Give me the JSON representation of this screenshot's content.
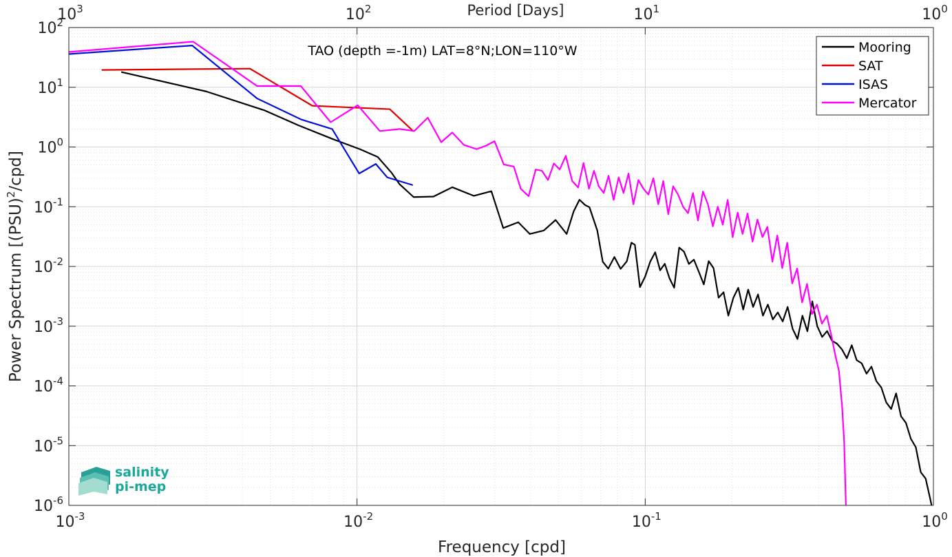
{
  "colors": {
    "Mooring": "#000000",
    "SAT": "#e00000",
    "ISAS": "#0010d8",
    "Mercator": "#ff00ff",
    "grid": "#d6d6d6",
    "axis": "#262626",
    "logo": "#1aa89a"
  },
  "logo": {
    "line1": "salinity",
    "line2": "pi-mep",
    "icon": "wave-layers-icon"
  },
  "chart_data": {
    "type": "line",
    "title": "TAO (depth =-1m) LAT=8°N;LON=110°W",
    "xlabel": "Frequency [cpd]",
    "ylabel": "Power Spectrum [(PSU)²/cpd]",
    "ylabel_parts": {
      "main": "Power Spectrum [(PSU)",
      "sup": "2",
      "tail": "/cpd]"
    },
    "top_xlabel": "Period [Days]",
    "xscale": "log",
    "yscale": "log",
    "xlim": [
      0.001,
      1
    ],
    "ylim": [
      1e-06,
      100
    ],
    "x_ticks": [
      {
        "value": 0.001,
        "base": "10",
        "exp": "-3"
      },
      {
        "value": 0.01,
        "base": "10",
        "exp": "-2"
      },
      {
        "value": 0.1,
        "base": "10",
        "exp": "-1"
      },
      {
        "value": 1,
        "base": "10",
        "exp": "0"
      }
    ],
    "top_ticks": [
      {
        "value": 1000,
        "base": "10",
        "exp": "3"
      },
      {
        "value": 100,
        "base": "10",
        "exp": "2"
      },
      {
        "value": 10,
        "base": "10",
        "exp": "1"
      },
      {
        "value": 1,
        "base": "10",
        "exp": "0"
      }
    ],
    "y_ticks": [
      {
        "value": 1e-06,
        "base": "10",
        "exp": "-6"
      },
      {
        "value": 1e-05,
        "base": "10",
        "exp": "-5"
      },
      {
        "value": 0.0001,
        "base": "10",
        "exp": "-4"
      },
      {
        "value": 0.001,
        "base": "10",
        "exp": "-3"
      },
      {
        "value": 0.01,
        "base": "10",
        "exp": "-2"
      },
      {
        "value": 0.1,
        "base": "10",
        "exp": "-1"
      },
      {
        "value": 1,
        "base": "10",
        "exp": "0"
      },
      {
        "value": 10,
        "base": "10",
        "exp": "1"
      },
      {
        "value": 100,
        "base": "10",
        "exp": "2"
      }
    ],
    "grid": true,
    "minor_grid": true,
    "legend_position": "top-right",
    "series": [
      {
        "name": "Mooring",
        "x": [
          0.00152,
          0.003,
          0.00478,
          0.00627,
          0.00826,
          0.01023,
          0.0118,
          0.01318,
          0.01403,
          0.01572,
          0.01842,
          0.02141,
          0.02544,
          0.02925,
          0.03216,
          0.03626,
          0.03977,
          0.04446,
          0.04887,
          0.05338,
          0.05642,
          0.05913,
          0.06181,
          0.06404,
          0.06818,
          0.07123,
          0.07443,
          0.07817,
          0.08215,
          0.08632,
          0.08956,
          0.09208,
          0.09586,
          0.1,
          0.10406,
          0.1083,
          0.11267,
          0.11689,
          0.12145,
          0.12604,
          0.13118,
          0.13631,
          0.14175,
          0.14751,
          0.15338,
          0.15968,
          0.16606,
          0.17258,
          0.17975,
          0.18697,
          0.19428,
          0.20229,
          0.21033,
          0.21879,
          0.22761,
          0.23677,
          0.24627,
          0.25613,
          0.26637,
          0.27722,
          0.2884,
          0.29995,
          0.312,
          0.32453,
          0.33755,
          0.35117,
          0.36533,
          0.38001,
          0.39528,
          0.41115,
          0.42765,
          0.44482,
          0.46268,
          0.48131,
          0.50063,
          0.52075,
          0.54162,
          0.56339,
          0.58606,
          0.60954,
          0.63402,
          0.6595,
          0.68598,
          0.71354,
          0.7422,
          0.772,
          0.80304,
          0.83528,
          0.86884,
          0.90378,
          0.94003,
          0.97779,
          0.995
        ],
        "y": [
          18.0,
          8.5,
          4.1,
          2.3,
          1.35,
          0.92,
          0.68,
          0.37,
          0.24,
          0.145,
          0.148,
          0.212,
          0.152,
          0.182,
          0.044,
          0.055,
          0.035,
          0.04,
          0.06,
          0.035,
          0.083,
          0.131,
          0.107,
          0.098,
          0.04,
          0.012,
          0.0092,
          0.0144,
          0.0091,
          0.0122,
          0.025,
          0.023,
          0.0045,
          0.0068,
          0.012,
          0.0173,
          0.0086,
          0.0111,
          0.0063,
          0.0044,
          0.0207,
          0.0177,
          0.011,
          0.013,
          0.0082,
          0.005,
          0.0123,
          0.0094,
          0.003,
          0.0037,
          0.0015,
          0.003,
          0.0044,
          0.0019,
          0.0041,
          0.0021,
          0.0034,
          0.0015,
          0.0023,
          0.0013,
          0.0017,
          0.0012,
          0.0021,
          0.00091,
          0.00061,
          0.0015,
          0.00082,
          0.0026,
          0.001,
          0.00066,
          0.00083,
          0.00057,
          0.00051,
          0.00041,
          0.00029,
          0.00048,
          0.00027,
          0.00024,
          0.00016,
          0.00021,
          0.00012,
          9.4e-05,
          5.3e-05,
          4.1e-05,
          7.5e-05,
          3.1e-05,
          2.4e-05,
          1.3e-05,
          9.4e-06,
          3.6e-06,
          2.8e-06,
          1.2e-06,
          8e-07
        ]
      },
      {
        "name": "SAT",
        "x": [
          0.0013,
          0.00425,
          0.007,
          0.01299,
          0.01557
        ],
        "y": [
          19.5,
          20.5,
          4.9,
          4.3,
          1.9
        ]
      },
      {
        "name": "ISAS",
        "x": [
          0.001,
          0.00268,
          0.0045,
          0.00639,
          0.0082,
          0.01017,
          0.01162,
          0.01273,
          0.01562
        ],
        "y": [
          36.0,
          50.0,
          6.5,
          2.9,
          2.0,
          0.36,
          0.52,
          0.31,
          0.23
        ]
      },
      {
        "name": "Mercator",
        "x": [
          0.001,
          0.0027,
          0.0045,
          0.00638,
          0.0081,
          0.01006,
          0.012,
          0.0141,
          0.0158,
          0.0176,
          0.0196,
          0.0214,
          0.0235,
          0.026,
          0.028,
          0.03,
          0.0323,
          0.035,
          0.037,
          0.0394,
          0.0417,
          0.0438,
          0.046,
          0.0482,
          0.0505,
          0.053,
          0.0558,
          0.0585,
          0.0611,
          0.0638,
          0.0664,
          0.069,
          0.0718,
          0.0746,
          0.0777,
          0.0809,
          0.0841,
          0.0875,
          0.091,
          0.0947,
          0.0986,
          0.1026,
          0.1067,
          0.111,
          0.1155,
          0.1202,
          0.125,
          0.13,
          0.1353,
          0.1408,
          0.1465,
          0.1524,
          0.1586,
          0.165,
          0.1717,
          0.1786,
          0.1858,
          0.1933,
          0.2011,
          0.2093,
          0.2177,
          0.2265,
          0.2357,
          0.2452,
          0.2551,
          0.2654,
          0.2762,
          0.2873,
          0.2989,
          0.311,
          0.3236,
          0.3366,
          0.3502,
          0.3644,
          0.3791,
          0.3944,
          0.4103,
          0.4269,
          0.4441,
          0.457,
          0.47,
          0.482,
          0.49,
          0.497
        ],
        "y": [
          39.0,
          58.0,
          10.5,
          10.5,
          2.6,
          5.0,
          1.85,
          2.0,
          1.85,
          3.1,
          1.2,
          1.75,
          1.08,
          0.92,
          1.05,
          1.25,
          0.51,
          0.47,
          0.2,
          0.15,
          0.42,
          0.4,
          0.28,
          0.53,
          0.42,
          0.71,
          0.27,
          0.21,
          0.54,
          0.2,
          0.4,
          0.22,
          0.17,
          0.33,
          0.13,
          0.31,
          0.17,
          0.36,
          0.11,
          0.28,
          0.2,
          0.16,
          0.3,
          0.11,
          0.27,
          0.075,
          0.22,
          0.16,
          0.1,
          0.078,
          0.17,
          0.059,
          0.18,
          0.11,
          0.047,
          0.1,
          0.05,
          0.13,
          0.031,
          0.08,
          0.035,
          0.077,
          0.026,
          0.061,
          0.031,
          0.046,
          0.012,
          0.033,
          0.0094,
          0.025,
          0.0052,
          0.0092,
          0.0025,
          0.0051,
          0.0016,
          0.0023,
          0.0011,
          0.0015,
          0.00064,
          0.00032,
          0.00018,
          4.6e-05,
          1.2e-05,
          1e-06
        ]
      }
    ]
  }
}
